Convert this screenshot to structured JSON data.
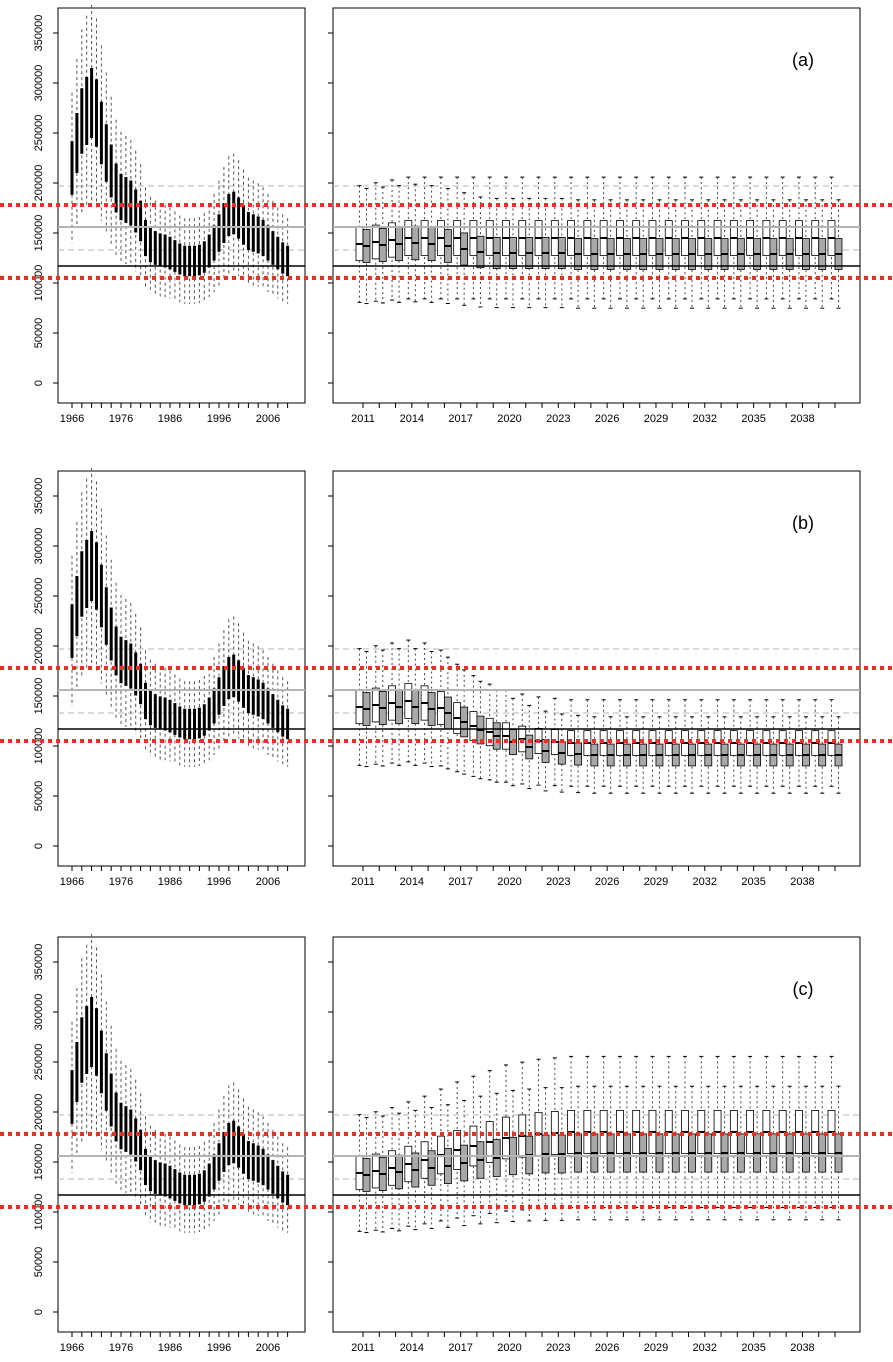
{
  "chart_data": {
    "type": "boxplot",
    "description": "Three rows of paired panels: historical boxplot series 1966-2010 (left) and projected boxplot series 2011-2040 (right).",
    "y_axis": {
      "ylim": [
        0,
        350000
      ],
      "ticks": [
        0,
        50000,
        100000,
        150000,
        200000,
        250000,
        300000,
        350000
      ],
      "tick_labels": [
        "0",
        "50000",
        "100000",
        "150000",
        "200000",
        "250000",
        "300000",
        "350000"
      ]
    },
    "colors": {
      "reference_red": "#e8321e",
      "reference_gray": "#b4b4b4",
      "box_white": "#ffffff",
      "box_gray": "#a8a8a8",
      "ink": "#000000"
    },
    "reference_lines": [
      {
        "y": 178000,
        "style": "red-dotted"
      },
      {
        "y": 105000,
        "style": "red-dotted"
      },
      {
        "y": 156000,
        "style": "gray-solid"
      },
      {
        "y": 117000,
        "style": "black-solid"
      },
      {
        "y": 197000,
        "style": "gray-dashed"
      },
      {
        "y": 133000,
        "style": "gray-dashed"
      }
    ],
    "historical": {
      "x_ticks": [
        "1966",
        "1976",
        "1986",
        "1996",
        "2006"
      ],
      "years": [
        1966,
        1967,
        1968,
        1969,
        1970,
        1971,
        1972,
        1973,
        1974,
        1975,
        1976,
        1977,
        1978,
        1979,
        1980,
        1981,
        1982,
        1983,
        1984,
        1985,
        1986,
        1987,
        1988,
        1989,
        1990,
        1991,
        1992,
        1993,
        1994,
        1995,
        1996,
        1997,
        1998,
        1999,
        2000,
        2001,
        2002,
        2003,
        2004,
        2005,
        2006,
        2007,
        2008,
        2009,
        2010
      ],
      "median": [
        215000,
        240000,
        262000,
        272000,
        280000,
        270000,
        250000,
        230000,
        212000,
        195000,
        186000,
        183000,
        180000,
        172000,
        162000,
        145000,
        138000,
        135000,
        133000,
        132000,
        130000,
        127000,
        124000,
        122000,
        122000,
        122000,
        123000,
        126000,
        132000,
        140000,
        150000,
        160000,
        168000,
        170000,
        165000,
        158000,
        152000,
        150000,
        148000,
        145000,
        140000,
        135000,
        130000,
        125000,
        122000
      ]
    },
    "panels": [
      {
        "label": "(a)",
        "x_ticks": [
          "2011",
          "2014",
          "2017",
          "2020",
          "2023",
          "2026",
          "2029",
          "2032",
          "2035",
          "2038"
        ],
        "years": [
          2011,
          2012,
          2013,
          2014,
          2015,
          2016,
          2017,
          2018,
          2019,
          2020,
          2021,
          2022,
          2023,
          2024,
          2025,
          2026,
          2027,
          2028,
          2029,
          2030,
          2031,
          2032,
          2033,
          2034,
          2035,
          2036,
          2037,
          2038,
          2039,
          2040
        ],
        "median_white": [
          139000,
          141000,
          143000,
          145000,
          145000,
          145000,
          145000,
          145000,
          145000,
          145000,
          145000,
          145000,
          145000,
          145000,
          145000,
          145000,
          145000,
          145000,
          145000,
          145000,
          145000,
          145000,
          145000,
          145000,
          145000,
          145000,
          145000,
          145000,
          145000,
          145000
        ],
        "median_gray": [
          137000,
          138000,
          139000,
          140000,
          139000,
          137000,
          134000,
          131000,
          130000,
          130000,
          130000,
          130000,
          130000,
          129000,
          129000,
          129000,
          129000,
          129000,
          129000,
          129000,
          129000,
          129000,
          129000,
          129000,
          129000,
          129000,
          129000,
          129000,
          129000,
          129000
        ]
      },
      {
        "label": "(b)",
        "x_ticks": [
          "2011",
          "2014",
          "2017",
          "2020",
          "2023",
          "2026",
          "2029",
          "2032",
          "2035",
          "2038"
        ],
        "years": [
          2011,
          2012,
          2013,
          2014,
          2015,
          2016,
          2017,
          2018,
          2019,
          2020,
          2021,
          2022,
          2023,
          2024,
          2025,
          2026,
          2027,
          2028,
          2029,
          2030,
          2031,
          2032,
          2033,
          2034,
          2035,
          2036,
          2037,
          2038,
          2039,
          2040
        ],
        "median_white": [
          139000,
          141000,
          143000,
          145000,
          143000,
          138000,
          128000,
          120000,
          114000,
          110000,
          107000,
          105000,
          104000,
          103000,
          103000,
          103000,
          103000,
          103000,
          103000,
          103000,
          103000,
          103000,
          103000,
          103000,
          103000,
          103000,
          103000,
          103000,
          103000,
          103000
        ],
        "median_gray": [
          137000,
          138000,
          139000,
          139000,
          137000,
          133000,
          124000,
          116000,
          110000,
          104000,
          99000,
          95000,
          93000,
          92000,
          91000,
          91000,
          91000,
          91000,
          91000,
          91000,
          91000,
          91000,
          91000,
          91000,
          91000,
          91000,
          91000,
          91000,
          91000,
          91000
        ]
      },
      {
        "label": "(c)",
        "x_ticks": [
          "2011",
          "2014",
          "2017",
          "2020",
          "2023",
          "2026",
          "2029",
          "2032",
          "2035",
          "2038"
        ],
        "years": [
          2011,
          2012,
          2013,
          2014,
          2015,
          2016,
          2017,
          2018,
          2019,
          2020,
          2021,
          2022,
          2023,
          2024,
          2025,
          2026,
          2027,
          2028,
          2029,
          2030,
          2031,
          2032,
          2033,
          2034,
          2035,
          2036,
          2037,
          2038,
          2039,
          2040
        ],
        "median_white": [
          139000,
          141000,
          144000,
          148000,
          152000,
          157000,
          162000,
          166000,
          170000,
          174000,
          176000,
          178000,
          179000,
          180000,
          180000,
          180000,
          180000,
          180000,
          180000,
          180000,
          180000,
          180000,
          180000,
          180000,
          180000,
          180000,
          180000,
          180000,
          180000,
          180000
        ],
        "median_gray": [
          137000,
          138000,
          140000,
          142000,
          144000,
          146000,
          149000,
          152000,
          154000,
          156000,
          157000,
          158000,
          158000,
          159000,
          159000,
          159000,
          159000,
          159000,
          159000,
          159000,
          159000,
          159000,
          159000,
          159000,
          159000,
          159000,
          159000,
          159000,
          159000,
          159000
        ]
      }
    ]
  }
}
